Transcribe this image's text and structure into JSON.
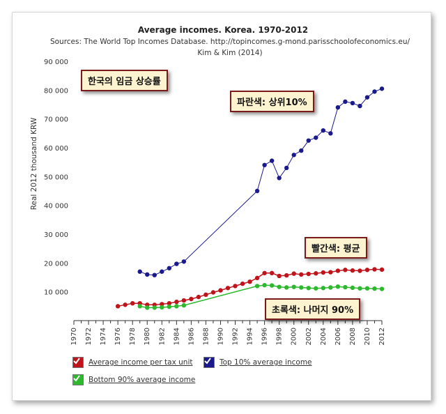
{
  "chart_data": {
    "type": "line",
    "title": "Average incomes. Korea. 1970-2012",
    "subtitle_lines": [
      "Sources: The World Top Incomes Database. http://topincomes.g-mond.parisschoolofeconomics.eu/",
      "Kim & Kim (2014)"
    ],
    "ylabel": "Real 2012 thousand KRW",
    "xlabel": "",
    "xlim": [
      1970,
      2012
    ],
    "ylim": [
      0,
      90000
    ],
    "x_ticks": [
      "1970",
      "1972",
      "1974",
      "1976",
      "1978",
      "1980",
      "1982",
      "1984",
      "1986",
      "1988",
      "1990",
      "1992",
      "1994",
      "1996",
      "1998",
      "2000",
      "2002",
      "2004",
      "2006",
      "2008",
      "2010",
      "2012"
    ],
    "y_ticks": [
      "10 000",
      "20 000",
      "30 000",
      "40 000",
      "50 000",
      "60 000",
      "70 000",
      "80 000",
      "90 000"
    ],
    "grid": false,
    "legend_position": "bottom",
    "series": [
      {
        "name": "Average income per tax unit",
        "color": "#c0141c",
        "points": [
          [
            1976,
            5000
          ],
          [
            1977,
            5500
          ],
          [
            1978,
            6000
          ],
          [
            1979,
            6000
          ],
          [
            1980,
            5500
          ],
          [
            1981,
            5500
          ],
          [
            1982,
            5700
          ],
          [
            1983,
            6000
          ],
          [
            1984,
            6500
          ],
          [
            1985,
            7000
          ],
          [
            1986,
            7500
          ],
          [
            1987,
            8200
          ],
          [
            1988,
            9000
          ],
          [
            1989,
            9800
          ],
          [
            1990,
            10500
          ],
          [
            1991,
            11300
          ],
          [
            1992,
            12000
          ],
          [
            1993,
            12800
          ],
          [
            1994,
            13500
          ],
          [
            1995,
            14800
          ],
          [
            1996,
            16500
          ],
          [
            1997,
            16500
          ],
          [
            1998,
            15500
          ],
          [
            1999,
            15700
          ],
          [
            2000,
            16300
          ],
          [
            2001,
            16000
          ],
          [
            2002,
            16200
          ],
          [
            2003,
            16400
          ],
          [
            2004,
            16700
          ],
          [
            2005,
            16800
          ],
          [
            2006,
            17300
          ],
          [
            2007,
            17600
          ],
          [
            2008,
            17400
          ],
          [
            2009,
            17300
          ],
          [
            2010,
            17600
          ],
          [
            2011,
            17800
          ],
          [
            2012,
            17700
          ]
        ]
      },
      {
        "name": "Top 10% average income",
        "color": "#1a1a8c",
        "points": [
          [
            1979,
            17000
          ],
          [
            1980,
            16000
          ],
          [
            1981,
            15800
          ],
          [
            1982,
            17000
          ],
          [
            1983,
            18200
          ],
          [
            1984,
            19700
          ],
          [
            1985,
            20500
          ],
          [
            1995,
            45000
          ],
          [
            1996,
            54000
          ],
          [
            1997,
            55500
          ],
          [
            1998,
            49500
          ],
          [
            1999,
            53000
          ],
          [
            2000,
            57500
          ],
          [
            2001,
            59000
          ],
          [
            2002,
            62500
          ],
          [
            2003,
            63500
          ],
          [
            2004,
            66000
          ],
          [
            2005,
            65000
          ],
          [
            2006,
            74000
          ],
          [
            2007,
            76000
          ],
          [
            2008,
            75500
          ],
          [
            2009,
            74500
          ],
          [
            2010,
            77500
          ],
          [
            2011,
            79500
          ],
          [
            2012,
            80500
          ]
        ]
      },
      {
        "name": "Bottom 90% average income",
        "color": "#2db82d",
        "points": [
          [
            1979,
            5000
          ],
          [
            1980,
            4500
          ],
          [
            1981,
            4500
          ],
          [
            1982,
            4600
          ],
          [
            1983,
            4800
          ],
          [
            1984,
            5000
          ],
          [
            1985,
            5300
          ],
          [
            1995,
            12000
          ],
          [
            1996,
            12300
          ],
          [
            1997,
            12200
          ],
          [
            1998,
            11700
          ],
          [
            1999,
            11500
          ],
          [
            2000,
            11700
          ],
          [
            2001,
            11500
          ],
          [
            2002,
            11300
          ],
          [
            2003,
            11200
          ],
          [
            2004,
            11300
          ],
          [
            2005,
            11500
          ],
          [
            2006,
            11800
          ],
          [
            2007,
            11600
          ],
          [
            2008,
            11400
          ],
          [
            2009,
            11200
          ],
          [
            2010,
            11200
          ],
          [
            2011,
            11100
          ],
          [
            2012,
            11000
          ]
        ]
      }
    ],
    "annotations": [
      {
        "id": "main",
        "text": "한국의 임금 상승률"
      },
      {
        "id": "top",
        "text": "파란색: 상위10%"
      },
      {
        "id": "avg",
        "text": "빨간색: 평균"
      },
      {
        "id": "bottom",
        "text": "초록색: 나머지 90%"
      }
    ]
  }
}
